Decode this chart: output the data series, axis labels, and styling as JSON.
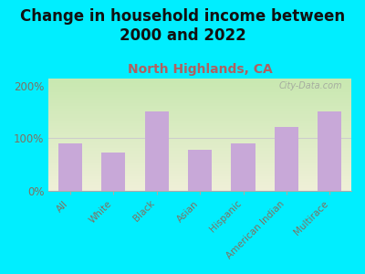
{
  "title": "Change in household income between\n2000 and 2022",
  "subtitle": "North Highlands, CA",
  "categories": [
    "All",
    "White",
    "Black",
    "Asian",
    "Hispanic",
    "American Indian",
    "Multirace"
  ],
  "values": [
    90,
    72,
    152,
    78,
    90,
    122,
    152
  ],
  "bar_color": "#c8a8d8",
  "title_fontsize": 12,
  "subtitle_fontsize": 10,
  "ylabel_ticks": [
    "0%",
    "100%",
    "200%"
  ],
  "yticks": [
    0,
    100,
    200
  ],
  "ylim": [
    0,
    215
  ],
  "background_outer": "#00eeff",
  "background_inner_top_left": "#c8e8b0",
  "background_inner_bottom_right": "#f0f0d8",
  "watermark": "City-Data.com",
  "title_color": "#111111",
  "subtitle_color": "#b06060",
  "tick_label_color": "#807060",
  "axis_label_color": "#807060"
}
